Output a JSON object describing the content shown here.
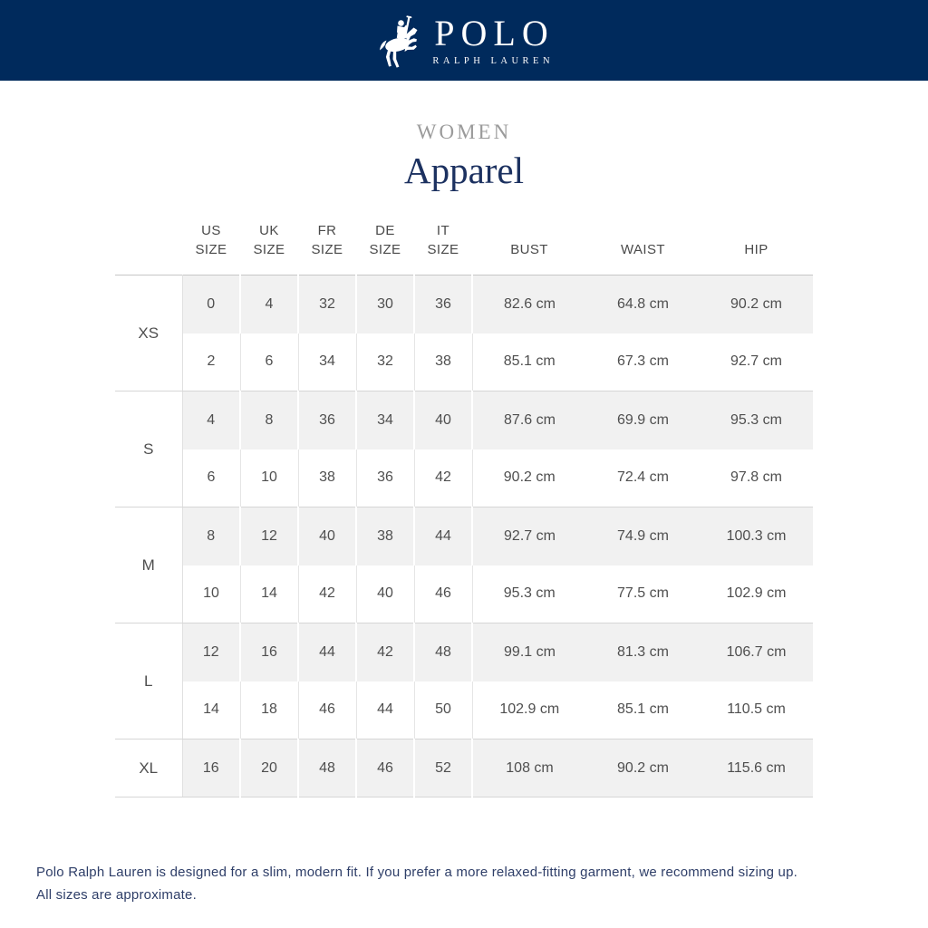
{
  "brand": {
    "name": "POLO",
    "subname": "RALPH LAUREN",
    "icon": "polo-player-icon"
  },
  "title": {
    "category": "WOMEN",
    "section": "Apparel"
  },
  "table": {
    "columns": [
      "US\nSIZE",
      "UK\nSIZE",
      "FR\nSIZE",
      "DE\nSIZE",
      "IT\nSIZE",
      "BUST",
      "WAIST",
      "HIP"
    ],
    "groups": [
      {
        "label": "XS",
        "rows": [
          [
            "0",
            "4",
            "32",
            "30",
            "36",
            "82.6 cm",
            "64.8 cm",
            "90.2 cm"
          ],
          [
            "2",
            "6",
            "34",
            "32",
            "38",
            "85.1 cm",
            "67.3 cm",
            "92.7 cm"
          ]
        ]
      },
      {
        "label": "S",
        "rows": [
          [
            "4",
            "8",
            "36",
            "34",
            "40",
            "87.6 cm",
            "69.9 cm",
            "95.3 cm"
          ],
          [
            "6",
            "10",
            "38",
            "36",
            "42",
            "90.2 cm",
            "72.4 cm",
            "97.8 cm"
          ]
        ]
      },
      {
        "label": "M",
        "rows": [
          [
            "8",
            "12",
            "40",
            "38",
            "44",
            "92.7 cm",
            "74.9 cm",
            "100.3 cm"
          ],
          [
            "10",
            "14",
            "42",
            "40",
            "46",
            "95.3 cm",
            "77.5 cm",
            "102.9 cm"
          ]
        ]
      },
      {
        "label": "L",
        "rows": [
          [
            "12",
            "16",
            "44",
            "42",
            "48",
            "99.1 cm",
            "81.3 cm",
            "106.7 cm"
          ],
          [
            "14",
            "18",
            "46",
            "44",
            "50",
            "102.9 cm",
            "85.1 cm",
            "110.5 cm"
          ]
        ]
      },
      {
        "label": "XL",
        "rows": [
          [
            "16",
            "20",
            "48",
            "46",
            "52",
            "108 cm",
            "90.2 cm",
            "115.6 cm"
          ]
        ]
      }
    ]
  },
  "footer": {
    "line1": "Polo Ralph Lauren is designed for a slim, modern fit. If you prefer a more relaxed-fitting garment, we recommend sizing up.",
    "line2": "All sizes are approximate."
  },
  "colors": {
    "brand_navy": "#002a5c",
    "title_navy": "#1c3160",
    "muted_gray": "#9b9b9b",
    "row_shade": "#f1f1f1",
    "footer_navy": "#2e3e68"
  }
}
